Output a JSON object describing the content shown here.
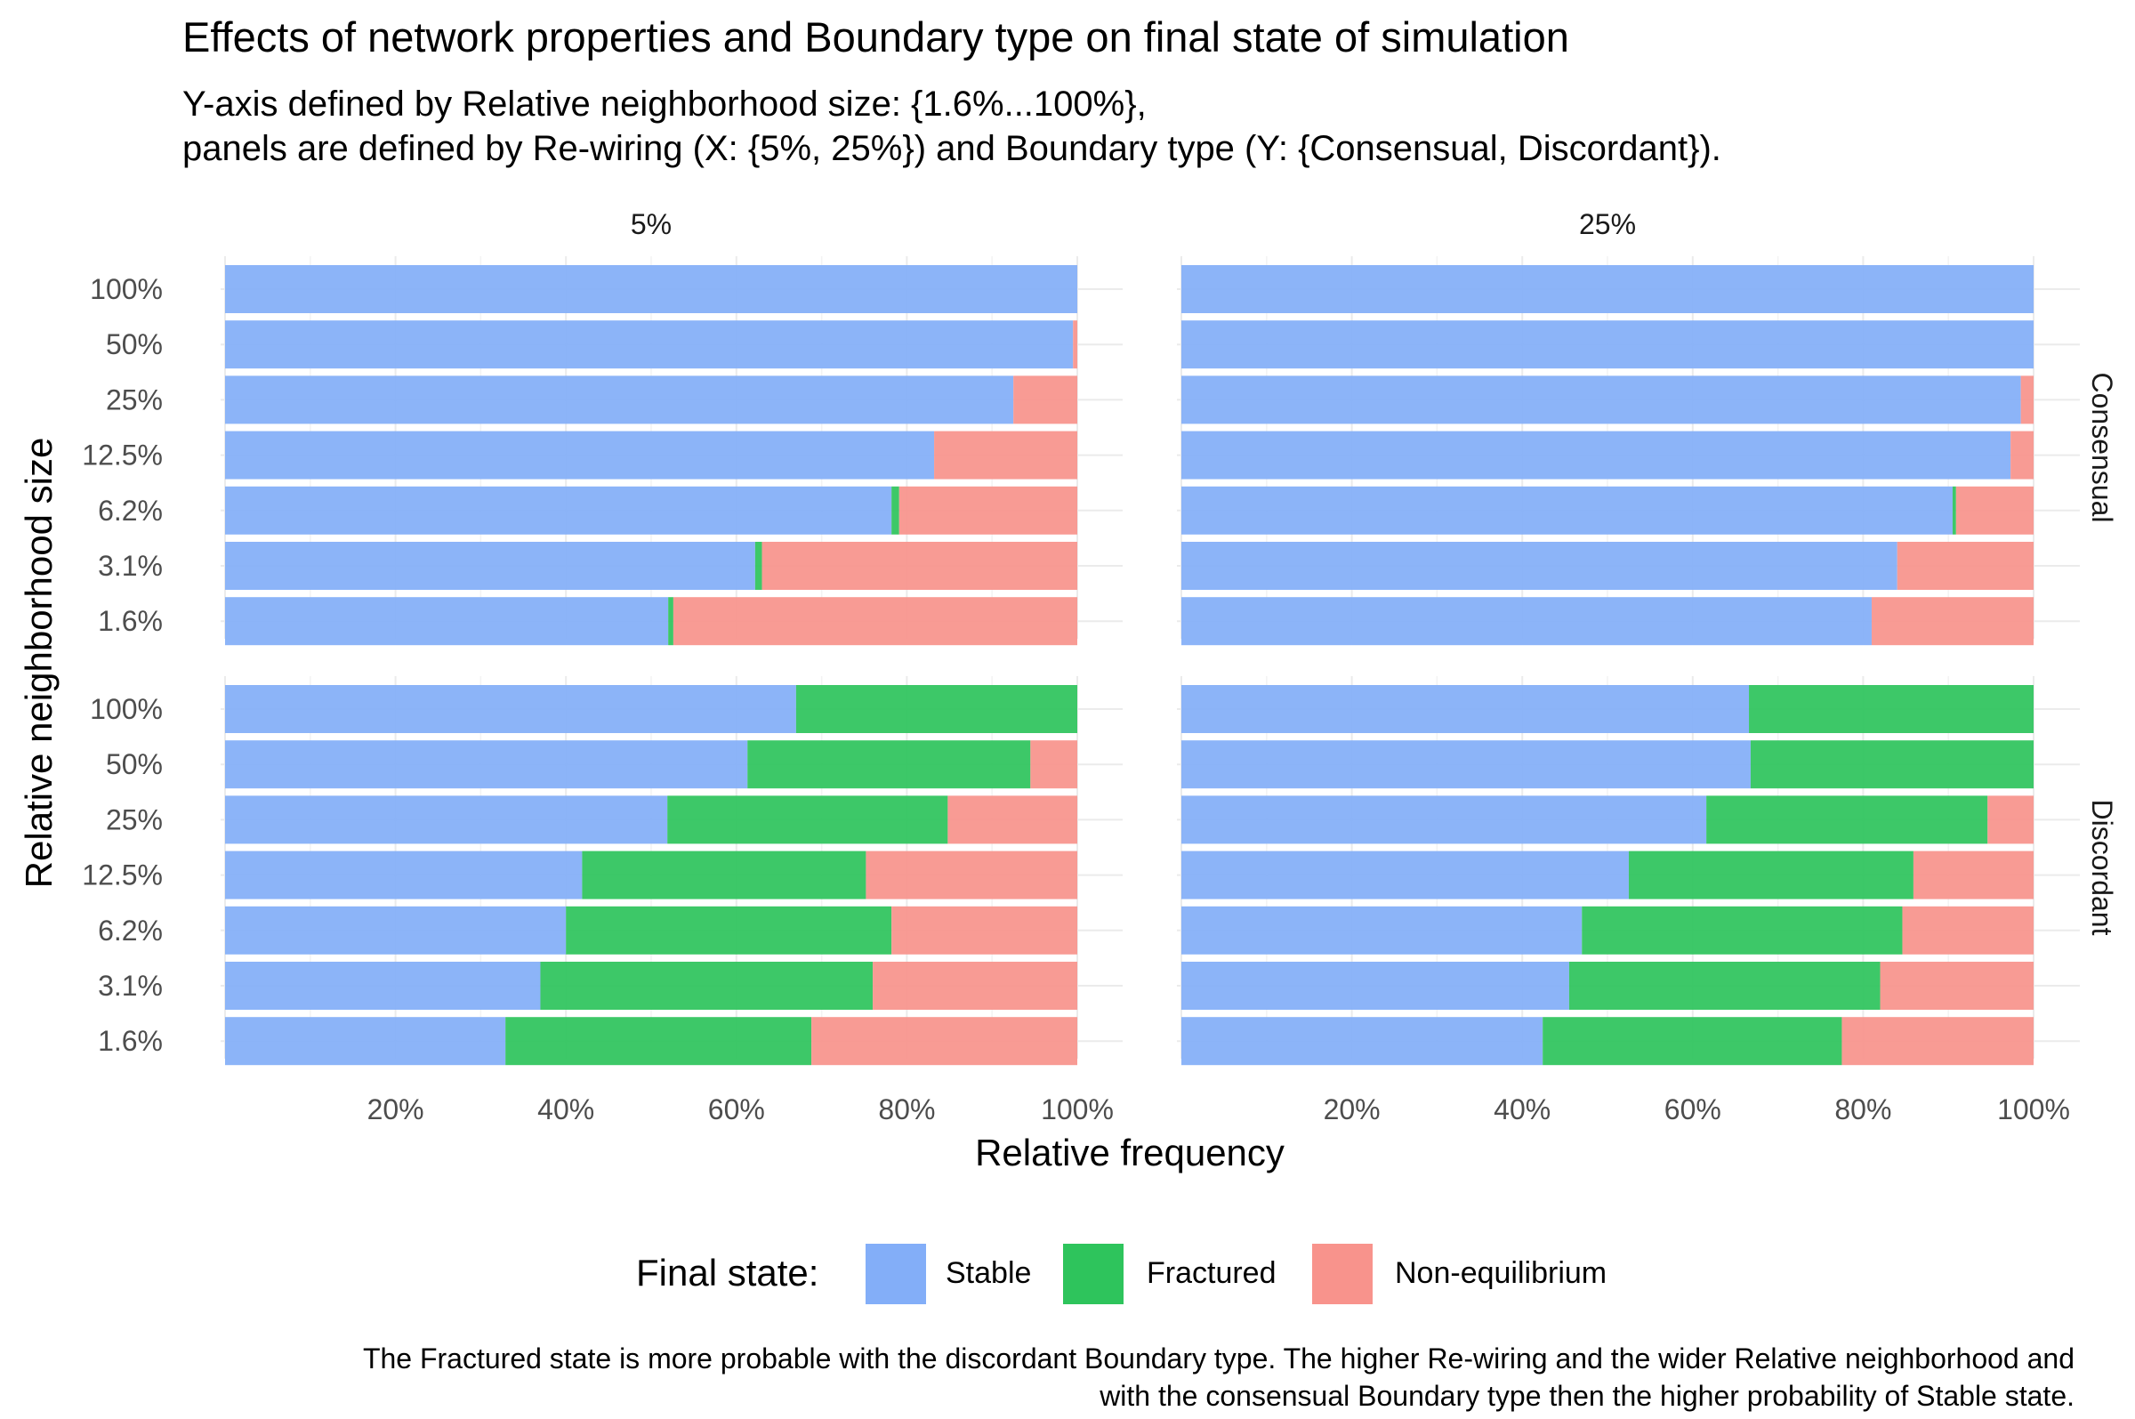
{
  "chart_data": {
    "type": "bar",
    "orientation": "horizontal",
    "stacked": true,
    "title": "Effects of network properties and Boundary type on final state of simulation",
    "subtitle_lines": [
      "Y-axis defined by Relative neighborhood size: {1.6%...100%},",
      "panels are defined by Re-wiring (X: {5%, 25%}) and Boundary type (Y: {Consensual, Discordant})."
    ],
    "xlabel": "Relative frequency",
    "ylabel": "Relative neighborhood size",
    "xlim": [
      0,
      100
    ],
    "x_ticks": [
      20,
      40,
      60,
      80,
      100
    ],
    "x_tick_labels": [
      "20%",
      "40%",
      "60%",
      "80%",
      "100%"
    ],
    "categories": [
      "100%",
      "50%",
      "25%",
      "12.5%",
      "6.2%",
      "3.1%",
      "1.6%"
    ],
    "facet_columns": [
      "5%",
      "25%"
    ],
    "facet_rows": [
      "Consensual",
      "Discordant"
    ],
    "grid": true,
    "legend": {
      "position": "bottom",
      "title": "Final state:",
      "items": [
        {
          "label": "Stable",
          "color": "#83aef8"
        },
        {
          "label": "Fractured",
          "color": "#2ec45c"
        },
        {
          "label": "Non-equilibrium",
          "color": "#f8938c"
        }
      ]
    },
    "panels": [
      {
        "col": "5%",
        "row": "Consensual",
        "stable": [
          100,
          99.5,
          92.5,
          83.2,
          78.2,
          62.2,
          52.0
        ],
        "fractured": [
          0,
          0,
          0,
          0,
          0.9,
          0.8,
          0.6
        ],
        "non_equilibrium": [
          0,
          0.5,
          7.5,
          16.8,
          20.9,
          37.0,
          47.4
        ]
      },
      {
        "col": "25%",
        "row": "Consensual",
        "stable": [
          100,
          100,
          98.5,
          97.3,
          90.5,
          84.0,
          81.0
        ],
        "fractured": [
          0,
          0,
          0,
          0,
          0.4,
          0,
          0
        ],
        "non_equilibrium": [
          0,
          0,
          1.5,
          2.7,
          9.1,
          16.0,
          19.0
        ]
      },
      {
        "col": "5%",
        "row": "Discordant",
        "stable": [
          67.0,
          61.3,
          51.9,
          41.9,
          40.0,
          37.0,
          32.9
        ],
        "fractured": [
          33.0,
          33.2,
          32.9,
          33.3,
          38.2,
          39.0,
          35.9
        ],
        "non_equilibrium": [
          0,
          5.5,
          15.2,
          24.8,
          21.8,
          24.0,
          31.2
        ]
      },
      {
        "col": "25%",
        "row": "Discordant",
        "stable": [
          66.6,
          66.8,
          61.6,
          52.5,
          47.0,
          45.5,
          42.4
        ],
        "fractured": [
          33.4,
          33.2,
          33.0,
          33.4,
          37.6,
          36.5,
          35.1
        ],
        "non_equilibrium": [
          0,
          0,
          5.4,
          14.1,
          15.4,
          18.0,
          22.5
        ]
      }
    ],
    "caption_lines": [
      "The Fractured state is more probable with the discordant Boundary type. The higher Re-wiring and the wider Relative neighborhood and",
      "with the consensual Boundary type then the higher probability of Stable state."
    ]
  }
}
